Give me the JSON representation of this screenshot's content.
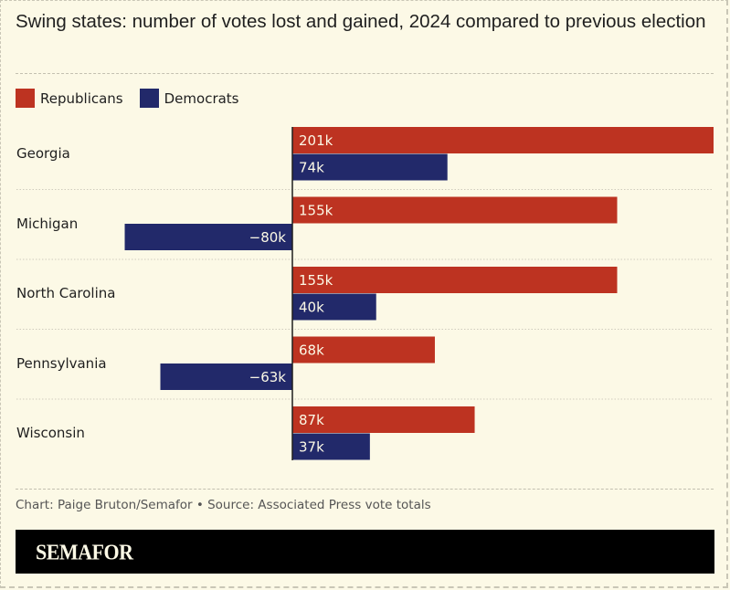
{
  "title": "Swing states: number of votes lost and gained, 2024 compared to previous election",
  "legend": [
    {
      "label": "Republicans",
      "color": "#bd3321"
    },
    {
      "label": "Democrats",
      "color": "#22296a"
    }
  ],
  "footer": {
    "credit": "Chart: Paige Bruton/Semafor • Source: Associated Press vote totals",
    "brand": "SEMAFOR"
  },
  "chart_data": {
    "type": "bar",
    "orientation": "horizontal",
    "title": "Swing states: number of votes lost and gained, 2024 compared to previous election",
    "xlabel": "",
    "ylabel": "",
    "unit": "thousands of votes",
    "xlim": [
      -80,
      201
    ],
    "grid": false,
    "legend_position": "top-left",
    "categories": [
      "Georgia",
      "Michigan",
      "North Carolina",
      "Pennsylvania",
      "Wisconsin"
    ],
    "series": [
      {
        "name": "Republicans",
        "color": "#bd3321",
        "values": [
          201,
          155,
          155,
          68,
          87
        ],
        "labels": [
          "201k",
          "155k",
          "155k",
          "68k",
          "87k"
        ]
      },
      {
        "name": "Democrats",
        "color": "#22296a",
        "values": [
          74,
          -80,
          40,
          -63,
          37
        ],
        "labels": [
          "74k",
          "−80k",
          "40k",
          "−63k",
          "37k"
        ]
      }
    ]
  }
}
